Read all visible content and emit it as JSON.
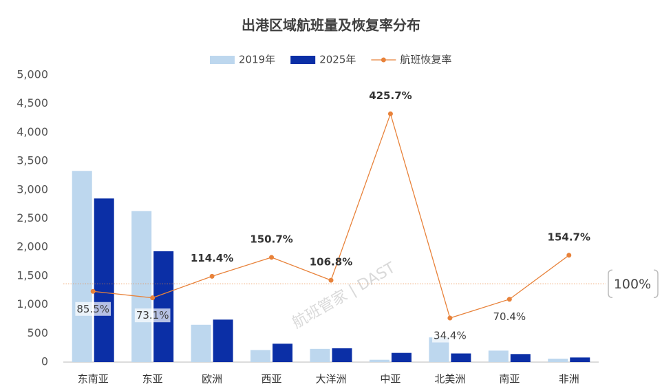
{
  "chart_data": {
    "type": "bar",
    "title": "出港区域航班量及恢复率分布",
    "watermark": "航班管家 | DAST",
    "categories": [
      "东南亚",
      "东亚",
      "欧洲",
      "西亚",
      "大洋洲",
      "中亚",
      "北美洲",
      "南亚",
      "非洲"
    ],
    "series": [
      {
        "name": "2019年",
        "color": "#bdd7ee",
        "values": [
          3330,
          2630,
          650,
          210,
          230,
          40,
          430,
          200,
          60
        ]
      },
      {
        "name": "2025年",
        "color": "#0b2fa6",
        "values": [
          2850,
          1930,
          740,
          320,
          240,
          160,
          150,
          140,
          80
        ]
      },
      {
        "name": "航班恢复率",
        "type": "line",
        "axis": "y2",
        "color": "#e8823a",
        "values": [
          85.5,
          73.1,
          114.4,
          150.7,
          106.8,
          425.7,
          34.4,
          70.4,
          154.7
        ],
        "value_labels": [
          "85.5%",
          "73.1%",
          "114.4%",
          "150.7%",
          "106.8%",
          "425.7%",
          "34.4%",
          "70.4%",
          "154.7%"
        ]
      }
    ],
    "ylim": [
      0,
      5000
    ],
    "yticks": [
      0,
      500,
      {
        "value": 1000,
        "label": "1,000"
      },
      {
        "value": 1500,
        "label": "1,500"
      },
      {
        "value": 2000,
        "label": "2,000"
      },
      {
        "value": 2500,
        "label": "2,500"
      },
      {
        "value": 3000,
        "label": "3,000"
      },
      {
        "value": 3500,
        "label": "3,500"
      },
      {
        "value": 4000,
        "label": "4,000"
      },
      {
        "value": 4500,
        "label": "4,500"
      },
      {
        "value": 5000,
        "label": "5,000"
      }
    ],
    "y2lim": [
      -50,
      500
    ],
    "reference_line": {
      "value": 100,
      "label": "100%",
      "color": "#e8823a"
    },
    "legend": "top",
    "grid": false
  }
}
